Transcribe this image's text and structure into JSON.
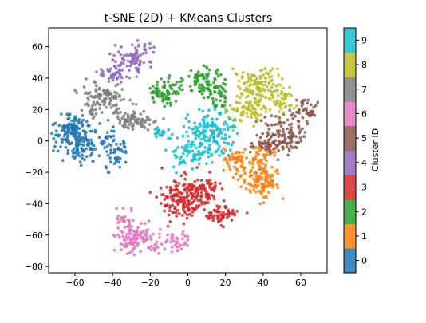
{
  "chart_data": {
    "type": "scatter",
    "title": "t-SNE (2D) + KMeans Clusters",
    "xlabel": "",
    "ylabel": "",
    "xlim": [
      -74,
      74
    ],
    "ylim": [
      -84,
      72
    ],
    "x_ticks": [
      -60,
      -40,
      -20,
      0,
      20,
      40,
      60
    ],
    "y_ticks": [
      60,
      40,
      20,
      0,
      -20,
      -40,
      -60,
      -80
    ],
    "grid": false,
    "colormap": "tab10",
    "point_alpha": 0.85,
    "colorbar": {
      "label": "Cluster ID",
      "ticks": [
        0,
        1,
        2,
        3,
        4,
        5,
        6,
        7,
        8,
        9
      ],
      "colors": [
        "#1f77b4",
        "#ff7f0e",
        "#2ca02c",
        "#d62728",
        "#9467bd",
        "#8c564b",
        "#e377c2",
        "#7f7f7f",
        "#bcbd22",
        "#17becf"
      ]
    },
    "clusters": [
      {
        "id": 0,
        "approx_extent": {
          "x": [
            -73,
            -33
          ],
          "y": [
            -20,
            17
          ]
        }
      },
      {
        "id": 1,
        "approx_extent": {
          "x": [
            19,
            54
          ],
          "y": [
            -40,
            0
          ]
        }
      },
      {
        "id": 2,
        "approx_extent": {
          "x": [
            -20,
            20
          ],
          "y": [
            22,
            50
          ]
        }
      },
      {
        "id": 3,
        "approx_extent": {
          "x": [
            -20,
            32
          ],
          "y": [
            -57,
            -17
          ]
        }
      },
      {
        "id": 4,
        "approx_extent": {
          "x": [
            -50,
            -18
          ],
          "y": [
            36,
            65
          ]
        }
      },
      {
        "id": 5,
        "approx_extent": {
          "x": [
            24,
            69
          ],
          "y": [
            -12,
            26
          ]
        }
      },
      {
        "id": 6,
        "approx_extent": {
          "x": [
            -40,
            0
          ],
          "y": [
            -77,
            -43
          ]
        }
      },
      {
        "id": 7,
        "approx_extent": {
          "x": [
            -60,
            -12
          ],
          "y": [
            4,
            40
          ]
        }
      },
      {
        "id": 8,
        "approx_extent": {
          "x": [
            20,
            70
          ],
          "y": [
            6,
            46
          ]
        }
      },
      {
        "id": 9,
        "approx_extent": {
          "x": [
            -20,
            36
          ],
          "y": [
            -22,
            20
          ]
        }
      }
    ]
  }
}
